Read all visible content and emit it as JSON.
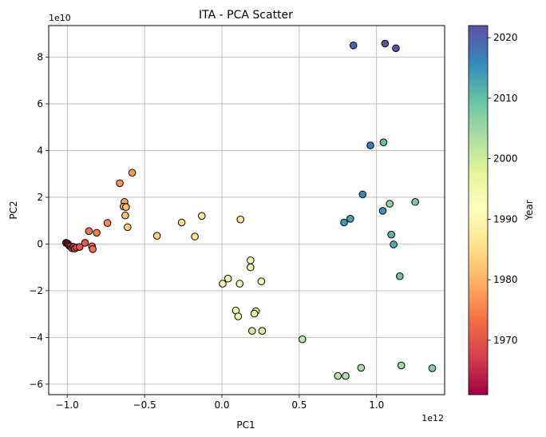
{
  "chart_data": {
    "type": "scatter",
    "title": "ITA - PCA Scatter",
    "xlabel": "PC1",
    "ylabel": "PC2",
    "x_offset_label": "1e12",
    "y_offset_label": "1e10",
    "xlim": [
      -1.12,
      1.44
    ],
    "ylim": [
      -6.45,
      9.35
    ],
    "xticks": [
      -1.0,
      -0.5,
      0.0,
      0.5,
      1.0
    ],
    "xtick_labels": [
      "−1.0",
      "−0.5",
      "0.0",
      "0.5",
      "1.0"
    ],
    "yticks": [
      -6,
      -4,
      -2,
      0,
      2,
      4,
      6,
      8
    ],
    "ytick_labels": [
      "−6",
      "−4",
      "−2",
      "0",
      "2",
      "4",
      "6",
      "8"
    ],
    "grid": true,
    "colormap": "Spectral",
    "colorbar": {
      "label": "Year",
      "min": 1961,
      "max": 2022,
      "ticks": [
        1970,
        1980,
        1990,
        2000,
        2010,
        2020
      ],
      "tick_labels": [
        "1970",
        "1980",
        "1990",
        "2000",
        "2010",
        "2020"
      ]
    },
    "points": [
      {
        "x": -1.008,
        "y": 0.05,
        "year": 1961
      },
      {
        "x": -0.998,
        "y": 0.02,
        "year": 1962
      },
      {
        "x": -0.992,
        "y": -0.03,
        "year": 1963
      },
      {
        "x": -0.986,
        "y": -0.08,
        "year": 1964
      },
      {
        "x": -0.978,
        "y": -0.1,
        "year": 1965
      },
      {
        "x": -0.97,
        "y": -0.18,
        "year": 1966
      },
      {
        "x": -0.96,
        "y": -0.12,
        "year": 1967
      },
      {
        "x": -0.952,
        "y": -0.2,
        "year": 1968
      },
      {
        "x": -0.94,
        "y": -0.15,
        "year": 1969
      },
      {
        "x": -0.92,
        "y": -0.13,
        "year": 1970
      },
      {
        "x": -0.885,
        "y": 0.05,
        "year": 1971
      },
      {
        "x": -0.84,
        "y": -0.1,
        "year": 1972
      },
      {
        "x": -0.835,
        "y": -0.22,
        "year": 1973
      },
      {
        "x": -0.86,
        "y": 0.55,
        "year": 1974
      },
      {
        "x": -0.81,
        "y": 0.48,
        "year": 1975
      },
      {
        "x": -0.74,
        "y": 0.9,
        "year": 1976
      },
      {
        "x": -0.66,
        "y": 2.6,
        "year": 1977
      },
      {
        "x": -0.58,
        "y": 3.05,
        "year": 1978
      },
      {
        "x": -0.63,
        "y": 1.8,
        "year": 1979
      },
      {
        "x": -0.635,
        "y": 1.6,
        "year": 1980
      },
      {
        "x": -0.62,
        "y": 1.58,
        "year": 1981
      },
      {
        "x": -0.625,
        "y": 1.22,
        "year": 1982
      },
      {
        "x": -0.61,
        "y": 0.72,
        "year": 1983
      },
      {
        "x": -0.42,
        "y": 0.35,
        "year": 1984
      },
      {
        "x": -0.26,
        "y": 0.92,
        "year": 1985
      },
      {
        "x": -0.175,
        "y": 0.32,
        "year": 1986
      },
      {
        "x": -0.13,
        "y": 1.2,
        "year": 1987
      },
      {
        "x": 0.12,
        "y": 1.05,
        "year": 1988
      },
      {
        "x": 0.005,
        "y": -1.7,
        "year": 1989
      },
      {
        "x": 0.04,
        "y": -1.48,
        "year": 1990
      },
      {
        "x": 0.115,
        "y": -1.7,
        "year": 1991
      },
      {
        "x": 0.255,
        "y": -1.6,
        "year": 1992
      },
      {
        "x": 0.185,
        "y": -0.7,
        "year": 1993
      },
      {
        "x": 0.185,
        "y": -1.0,
        "year": 1994
      },
      {
        "x": 0.09,
        "y": -2.85,
        "year": 1995
      },
      {
        "x": 0.105,
        "y": -3.1,
        "year": 1996
      },
      {
        "x": 0.22,
        "y": -2.88,
        "year": 1997
      },
      {
        "x": 0.21,
        "y": -2.98,
        "year": 1998
      },
      {
        "x": 0.26,
        "y": -3.72,
        "year": 1999
      },
      {
        "x": 0.195,
        "y": -3.72,
        "year": 2000
      },
      {
        "x": 0.52,
        "y": -4.08,
        "year": 2001
      },
      {
        "x": 0.75,
        "y": -5.65,
        "year": 2002
      },
      {
        "x": 0.8,
        "y": -5.65,
        "year": 2003
      },
      {
        "x": 0.9,
        "y": -5.3,
        "year": 2004
      },
      {
        "x": 1.16,
        "y": -5.2,
        "year": 2005
      },
      {
        "x": 1.085,
        "y": 1.72,
        "year": 2006
      },
      {
        "x": 1.36,
        "y": -5.32,
        "year": 2007
      },
      {
        "x": 1.25,
        "y": 1.8,
        "year": 2008
      },
      {
        "x": 1.15,
        "y": -1.38,
        "year": 2009
      },
      {
        "x": 1.045,
        "y": 4.35,
        "year": 2010
      },
      {
        "x": 1.095,
        "y": 0.4,
        "year": 2011
      },
      {
        "x": 1.11,
        "y": -0.02,
        "year": 2012
      },
      {
        "x": 0.83,
        "y": 1.08,
        "year": 2013
      },
      {
        "x": 0.79,
        "y": 0.92,
        "year": 2014
      },
      {
        "x": 1.04,
        "y": 1.42,
        "year": 2015
      },
      {
        "x": 0.91,
        "y": 2.12,
        "year": 2016
      },
      {
        "x": 0.96,
        "y": 4.22,
        "year": 2017
      },
      {
        "x": 0.85,
        "y": 8.5,
        "year": 2020
      },
      {
        "x": 1.055,
        "y": 8.58,
        "year": 2021
      },
      {
        "x": 1.125,
        "y": 8.38,
        "year": 2022
      }
    ]
  }
}
